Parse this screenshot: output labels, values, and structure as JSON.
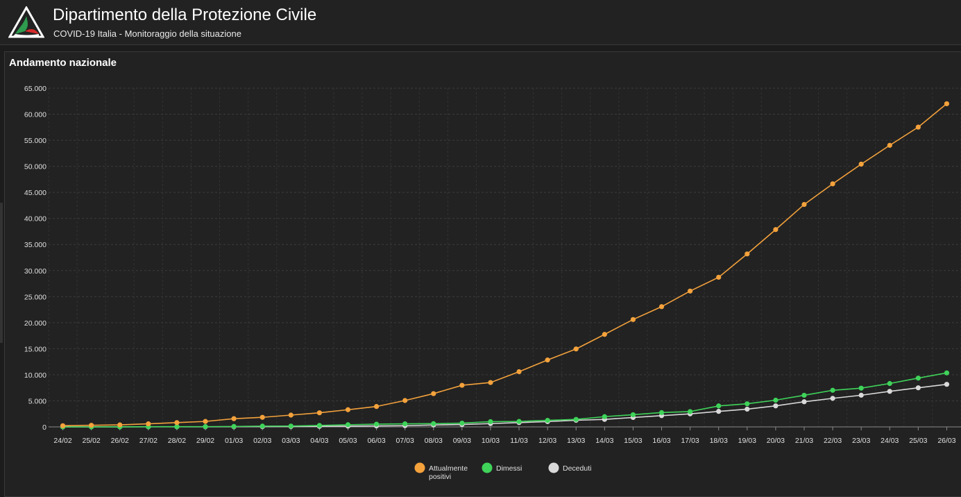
{
  "header": {
    "title": "Dipartimento della Protezione Civile",
    "subtitle": "COVID-19 Italia - Monitoraggio della situazione"
  },
  "panel": {
    "title": "Andamento nazionale"
  },
  "colors": {
    "attualmente_positivi": "#f4a23c",
    "dimessi": "#3fd35a",
    "deceduti": "#d9d9d9",
    "logo_green": "#2e9b4e",
    "logo_red": "#d62b2b"
  },
  "chart_data": {
    "type": "line",
    "categories": [
      "24/02",
      "25/02",
      "26/02",
      "27/02",
      "28/02",
      "29/02",
      "01/03",
      "02/03",
      "03/03",
      "04/03",
      "05/03",
      "06/03",
      "07/03",
      "08/03",
      "09/03",
      "10/03",
      "11/03",
      "12/03",
      "13/03",
      "14/03",
      "15/03",
      "16/03",
      "17/03",
      "18/03",
      "19/03",
      "20/03",
      "21/03",
      "22/03",
      "23/03",
      "24/03",
      "25/03",
      "26/03"
    ],
    "yticks": [
      "0",
      "5.000",
      "10.000",
      "15.000",
      "20.000",
      "25.000",
      "30.000",
      "35.000",
      "40.000",
      "45.000",
      "50.000",
      "55.000",
      "60.000",
      "65.000"
    ],
    "ylim": [
      0,
      65000
    ],
    "grid": true,
    "legend_position": "bottom-center",
    "series": [
      {
        "name": "Attualmente positivi",
        "color": "#f4a23c",
        "values": [
          221,
          311,
          385,
          588,
          821,
          1049,
          1577,
          1835,
          2263,
          2706,
          3296,
          3916,
          5061,
          6387,
          7985,
          8514,
          10590,
          12839,
          14955,
          17750,
          20603,
          23073,
          26062,
          28710,
          33190,
          37860,
          42681,
          46638,
          50418,
          54030,
          57521,
          62013
        ]
      },
      {
        "name": "Dimessi",
        "color": "#3fd35a",
        "values": [
          1,
          1,
          3,
          45,
          46,
          50,
          83,
          149,
          160,
          276,
          414,
          523,
          589,
          622,
          724,
          1004,
          1045,
          1258,
          1439,
          1966,
          2335,
          2749,
          2941,
          4025,
          4440,
          5129,
          6072,
          7024,
          7432,
          8326,
          9362,
          10361
        ]
      },
      {
        "name": "Deceduti",
        "color": "#d9d9d9",
        "values": [
          7,
          10,
          12,
          17,
          21,
          29,
          34,
          52,
          79,
          107,
          148,
          197,
          233,
          366,
          463,
          631,
          827,
          1016,
          1266,
          1441,
          1809,
          2158,
          2503,
          2978,
          3405,
          4032,
          4825,
          5476,
          6077,
          6820,
          7503,
          8165
        ]
      }
    ],
    "legend": [
      {
        "lines": [
          "Attualmente",
          "positivi"
        ],
        "color": "#f4a23c"
      },
      {
        "lines": [
          "Dimessi"
        ],
        "color": "#3fd35a"
      },
      {
        "lines": [
          "Deceduti"
        ],
        "color": "#d9d9d9"
      }
    ]
  }
}
